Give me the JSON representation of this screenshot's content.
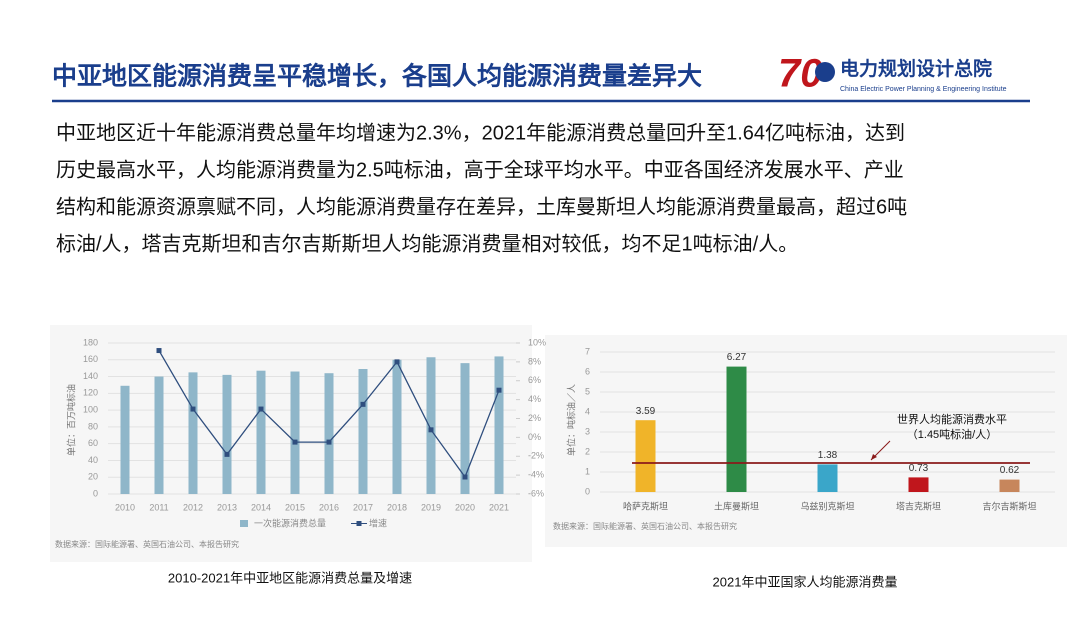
{
  "header": {
    "title": "中亚地区能源消费呈平稳增长，各国人均能源消费量差异大",
    "logo_number": "70",
    "logo_name": "电力规划设计总院",
    "logo_english": "China Electric Power Planning & Engineering Institute"
  },
  "paragraph": [
    "中亚地区近十年能源消费总量年均增速为2.3%，2021年能源消费总量回升至1.64亿吨标油，达到",
    "历史最高水平，人均能源消费量为2.5吨标油，高于全球平均水平。中亚各国经济发展水平、产业",
    "结构和能源资源禀赋不同，人均能源消费量存在差异，土库曼斯坦人均能源消费量最高，超过6吨",
    "标油/人，塔吉克斯坦和吉尔吉斯斯坦人均能源消费量相对较低，均不足1吨标油/人。"
  ],
  "chart_data": [
    {
      "type": "combo",
      "caption": "2010-2021年中亚地区能源消费总量及增速",
      "y_label": "单位：百万吨标油",
      "source": "数据来源：国际能源署、英国石油公司、本报告研究",
      "categories": [
        "2010",
        "2011",
        "2012",
        "2013",
        "2014",
        "2015",
        "2016",
        "2017",
        "2018",
        "2019",
        "2020",
        "2021"
      ],
      "series": [
        {
          "name": "一次能源消费总量",
          "type": "bar",
          "color": "#8fb6c9",
          "values": [
            129,
            140,
            145,
            142,
            147,
            146,
            144,
            149,
            160,
            163,
            156,
            164
          ]
        },
        {
          "name": "增速",
          "type": "line",
          "axis": "y2",
          "color": "#2f4e7e",
          "values": [
            null,
            9.2,
            3,
            -1.8,
            3,
            -0.5,
            -0.5,
            3.5,
            8,
            0.8,
            -4.2,
            5
          ]
        }
      ],
      "ylim": [
        0,
        180
      ],
      "yticks": [
        0,
        20,
        40,
        60,
        80,
        100,
        120,
        140,
        160,
        180
      ],
      "y2lim": [
        -6,
        10
      ],
      "y2ticks": [
        {
          "value": -6,
          "label": "-6%"
        },
        {
          "value": -4,
          "label": "-4%"
        },
        {
          "value": -2,
          "label": "-2%"
        },
        {
          "value": 0,
          "label": "0%"
        },
        {
          "value": 2,
          "label": "2%"
        },
        {
          "value": 4,
          "label": "4%"
        },
        {
          "value": 6,
          "label": "6%"
        },
        {
          "value": 8,
          "label": "8%"
        },
        {
          "value": 10,
          "label": "10%"
        }
      ],
      "grid": true,
      "legend": "bottom"
    },
    {
      "type": "bar",
      "caption": "2021年中亚国家人均能源消费量",
      "y_label": "单位：吨标油／人",
      "source": "数据来源：国际能源署、英国石油公司、本报告研究",
      "categories": [
        "哈萨克斯坦",
        "土库曼斯坦",
        "乌兹别克斯坦",
        "塔吉克斯坦",
        "吉尔吉斯斯坦"
      ],
      "values": [
        3.59,
        6.27,
        1.38,
        0.73,
        0.62
      ],
      "colors": [
        "#f0b429",
        "#2e8b47",
        "#3aa6c9",
        "#c0161c",
        "#c7865c"
      ],
      "ylim": [
        0,
        7
      ],
      "yticks": [
        0,
        1,
        2,
        3,
        4,
        5,
        6,
        7
      ],
      "grid": true,
      "reference_line": {
        "value": 1.45,
        "color": "#8b1a1a",
        "labels": [
          "世界人均能源消费水平",
          "（1.45吨标油/人）"
        ]
      }
    }
  ]
}
